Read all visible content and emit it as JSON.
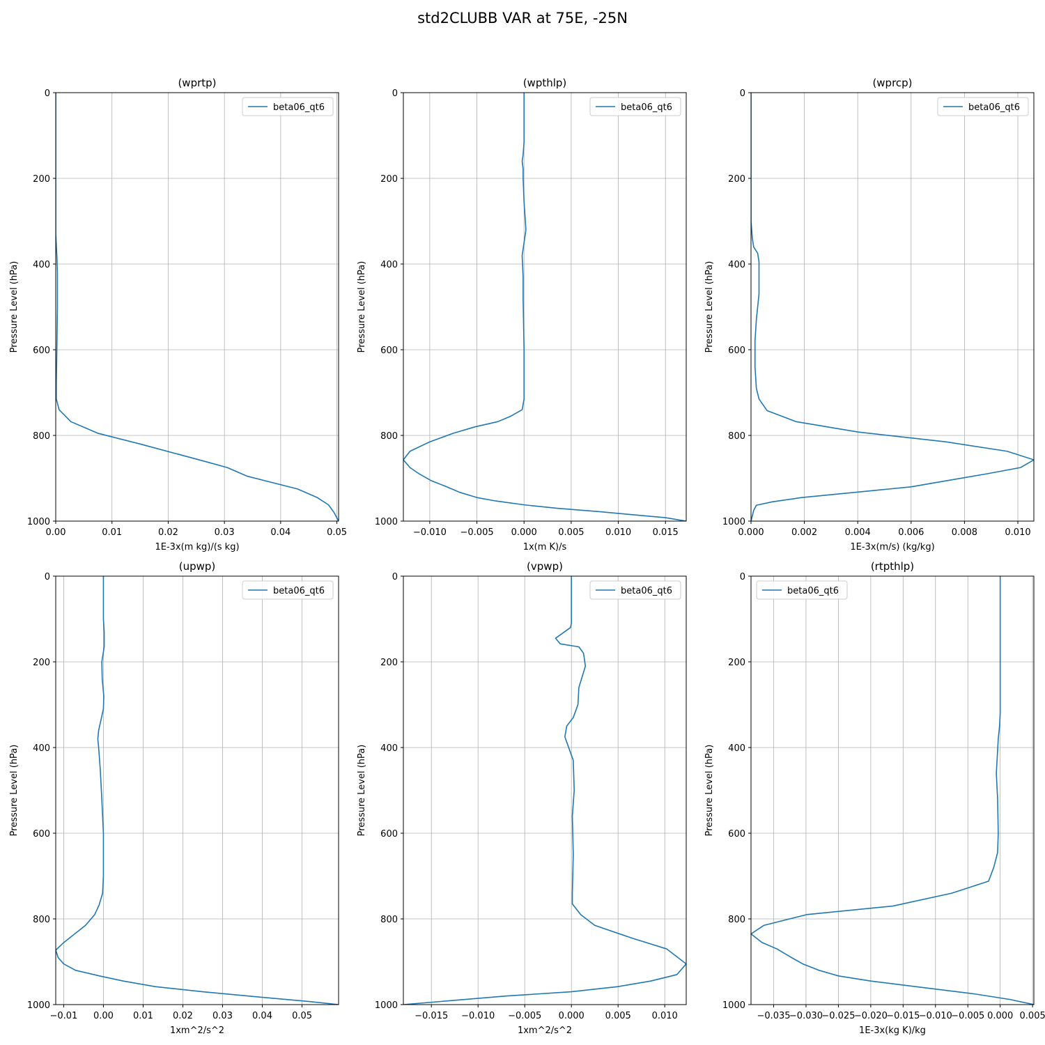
{
  "figure_title": "std2CLUBB VAR at 75E, -25N",
  "series_color": "#1f77b4",
  "chart_data": [
    {
      "type": "line",
      "title": "(wprtp)",
      "xlabel": "1E-3x(m kg)/(s kg)",
      "ylabel": "Pressure Level (hPa)",
      "xlim": [
        0,
        0.0503
      ],
      "ylim": [
        1000,
        0
      ],
      "xticks": [
        0,
        0.01,
        0.02,
        0.03,
        0.04,
        0.05
      ],
      "xtick_labels": [
        "0.00",
        "0.01",
        "0.02",
        "0.03",
        "0.04",
        "0.05"
      ],
      "yticks": [
        0,
        200,
        400,
        600,
        800,
        1000
      ],
      "ytick_labels": [
        "0",
        "200",
        "400",
        "600",
        "800",
        "1000"
      ],
      "grid": true,
      "legend": "top-right",
      "series": [
        {
          "name": "beta06_qt6",
          "x": [
            0,
            0,
            0.0002,
            0.0003,
            0.0003,
            0.0002,
            0.0001,
            0.0001,
            0.0006,
            0.0027,
            0.0075,
            0.015,
            0.0255,
            0.0305,
            0.034,
            0.043,
            0.0465,
            0.0485,
            0.0495,
            0.0503
          ],
          "y": [
            0,
            330,
            380,
            420,
            500,
            600,
            680,
            715,
            740,
            768,
            795,
            820,
            857,
            875,
            895,
            925,
            945,
            962,
            980,
            1000
          ]
        }
      ]
    },
    {
      "type": "line",
      "title": "(wpthlp)",
      "xlabel": "1x(m K)/s",
      "ylabel": "Pressure Level (hPa)",
      "xlim": [
        -0.0128,
        0.0172
      ],
      "ylim": [
        1000,
        0
      ],
      "xticks": [
        -0.01,
        -0.005,
        0,
        0.005,
        0.01,
        0.015
      ],
      "xtick_labels": [
        "−0.010",
        "−0.005",
        "0.000",
        "0.005",
        "0.010",
        "0.015"
      ],
      "yticks": [
        0,
        200,
        400,
        600,
        800,
        1000
      ],
      "ytick_labels": [
        "0",
        "200",
        "400",
        "600",
        "800",
        "1000"
      ],
      "grid": true,
      "legend": "top-right",
      "series": [
        {
          "name": "beta06_qt6",
          "x": [
            0,
            0,
            -0.0001,
            -0.0002,
            -0.0001,
            -0.0001,
            0,
            0.0002,
            -0.0002,
            -0.0001,
            -0.0001,
            0,
            0,
            0,
            -0.0002,
            -0.0014,
            -0.0028,
            -0.0052,
            -0.0075,
            -0.01,
            -0.0121,
            -0.0128,
            -0.0121,
            -0.0111,
            -0.0099,
            -0.0082,
            -0.0068,
            -0.005,
            -0.003,
            0,
            0.0035,
            0.008,
            0.0115,
            0.015,
            0.0172
          ],
          "y": [
            0,
            115,
            145,
            160,
            178,
            200,
            255,
            320,
            380,
            430,
            480,
            600,
            680,
            715,
            740,
            755,
            768,
            780,
            795,
            815,
            837,
            857,
            875,
            890,
            905,
            920,
            933,
            945,
            953,
            962,
            970,
            978,
            985,
            992,
            1000
          ]
        }
      ]
    },
    {
      "type": "line",
      "title": "(wprcp)",
      "xlabel": "1E-3x(m/s) (kg/kg)",
      "ylabel": "Pressure Level (hPa)",
      "xlim": [
        0,
        0.0106
      ],
      "ylim": [
        1000,
        0
      ],
      "xticks": [
        0,
        0.002,
        0.004,
        0.006,
        0.008,
        0.01
      ],
      "xtick_labels": [
        "0.000",
        "0.002",
        "0.004",
        "0.006",
        "0.008",
        "0.010"
      ],
      "yticks": [
        0,
        200,
        400,
        600,
        800,
        1000
      ],
      "ytick_labels": [
        "0",
        "200",
        "400",
        "600",
        "800",
        "1000"
      ],
      "grid": true,
      "legend": "top-right",
      "series": [
        {
          "name": "beta06_qt6",
          "x": [
            0,
            0,
            5e-05,
            0.0001,
            0.00025,
            0.0003,
            0.0003,
            0.0002,
            0.00015,
            0.00015,
            0.0002,
            0.0003,
            0.0006,
            0.0017,
            0.004,
            0.0073,
            0.0096,
            0.0106,
            0.0101,
            0.0088,
            0.0074,
            0.006,
            0.0019,
            0.0008,
            0.0002,
            0.0001,
            0
          ],
          "y": [
            0,
            300,
            340,
            360,
            375,
            395,
            470,
            530,
            580,
            640,
            690,
            715,
            742,
            768,
            792,
            815,
            837,
            857,
            875,
            890,
            905,
            920,
            945,
            955,
            963,
            975,
            1000
          ]
        }
      ]
    },
    {
      "type": "line",
      "title": "(upwp)",
      "xlabel": "1xm^2/s^2",
      "ylabel": "Pressure Level (hPa)",
      "xlim": [
        -0.012,
        0.0592
      ],
      "ylim": [
        1000,
        0
      ],
      "xticks": [
        -0.01,
        0,
        0.01,
        0.02,
        0.03,
        0.04,
        0.05
      ],
      "xtick_labels": [
        "−0.01",
        "0.00",
        "0.01",
        "0.02",
        "0.03",
        "0.04",
        "0.05"
      ],
      "yticks": [
        0,
        200,
        400,
        600,
        800,
        1000
      ],
      "ytick_labels": [
        "0",
        "200",
        "400",
        "600",
        "800",
        "1000"
      ],
      "grid": true,
      "legend": "top-right",
      "series": [
        {
          "name": "beta06_qt6",
          "x": [
            0,
            0,
            0.0002,
            0.0002,
            -0.0004,
            -0.0003,
            0.0001,
            0,
            -0.0012,
            -0.0014,
            -0.0012,
            -0.0008,
            -0.0004,
            0,
            0,
            -0.0002,
            -0.0011,
            -0.0022,
            -0.0045,
            -0.0075,
            -0.0102,
            -0.012,
            -0.0114,
            -0.01,
            -0.007,
            -0.001,
            0.005,
            0.013,
            0.025,
            0.04,
            0.052,
            0.0592
          ],
          "y": [
            0,
            100,
            130,
            165,
            200,
            240,
            280,
            310,
            360,
            380,
            400,
            450,
            520,
            600,
            700,
            740,
            768,
            790,
            815,
            837,
            857,
            873,
            890,
            905,
            920,
            933,
            945,
            958,
            970,
            983,
            993,
            1000
          ]
        }
      ]
    },
    {
      "type": "line",
      "title": "(vpwp)",
      "xlabel": "1xm^2/s^2",
      "ylabel": "Pressure Level (hPa)",
      "xlim": [
        -0.018,
        0.0123
      ],
      "ylim": [
        1000,
        0
      ],
      "xticks": [
        -0.015,
        -0.01,
        -0.005,
        0,
        0.005,
        0.01
      ],
      "xtick_labels": [
        "−0.015",
        "−0.010",
        "−0.005",
        "0.000",
        "0.005",
        "0.010"
      ],
      "yticks": [
        0,
        200,
        400,
        600,
        800,
        1000
      ],
      "ytick_labels": [
        "0",
        "200",
        "400",
        "600",
        "800",
        "1000"
      ],
      "grid": true,
      "legend": "top-right",
      "series": [
        {
          "name": "beta06_qt6",
          "x": [
            0,
            0,
            -0.0001,
            -0.0017,
            -0.0012,
            0.0008,
            0.0013,
            0.0015,
            0.0008,
            0.0007,
            0.0002,
            -0.0005,
            -0.0007,
            0.0002,
            0.0003,
            0.0001,
            0.0002,
            0.0001,
            0.0001,
            0.001,
            0.0025,
            0.0065,
            0.0102,
            0.0123,
            0.0113,
            0.0085,
            0.005,
            0,
            -0.007,
            -0.018
          ],
          "y": [
            0,
            110,
            120,
            145,
            158,
            165,
            180,
            210,
            260,
            300,
            330,
            350,
            375,
            430,
            500,
            560,
            650,
            740,
            765,
            790,
            815,
            845,
            870,
            905,
            930,
            945,
            958,
            970,
            980,
            1000
          ]
        }
      ]
    },
    {
      "type": "line",
      "title": "(rtpthlp)",
      "xlabel": "1E-3x(kg K)/kg",
      "ylabel": "Pressure Level (hPa)",
      "xlim": [
        -0.0385,
        0.0052
      ],
      "ylim": [
        1000,
        0
      ],
      "xticks": [
        -0.035,
        -0.03,
        -0.025,
        -0.02,
        -0.015,
        -0.01,
        -0.005,
        0,
        0.005
      ],
      "xtick_labels": [
        "−0.035",
        "−0.030",
        "−0.025",
        "−0.020",
        "−0.015",
        "−0.010",
        "−0.005",
        "0.000",
        "0.005"
      ],
      "yticks": [
        0,
        200,
        400,
        600,
        800,
        1000
      ],
      "ytick_labels": [
        "0",
        "200",
        "400",
        "600",
        "800",
        "1000"
      ],
      "grid": true,
      "legend": "top-left",
      "series": [
        {
          "name": "beta06_qt6",
          "x": [
            0,
            0,
            -0.0001,
            -0.0003,
            -0.0006,
            -0.0004,
            -0.0003,
            -0.0004,
            -0.001,
            -0.0018,
            -0.0075,
            -0.0166,
            -0.0299,
            -0.0365,
            -0.0385,
            -0.0368,
            -0.0345,
            -0.0325,
            -0.0305,
            -0.028,
            -0.025,
            -0.02,
            -0.012,
            -0.004,
            0.0015,
            0.0052
          ],
          "y": [
            0,
            320,
            350,
            380,
            460,
            520,
            600,
            645,
            680,
            712,
            740,
            770,
            790,
            815,
            835,
            855,
            870,
            888,
            905,
            920,
            933,
            945,
            960,
            975,
            988,
            1000
          ]
        }
      ]
    }
  ]
}
